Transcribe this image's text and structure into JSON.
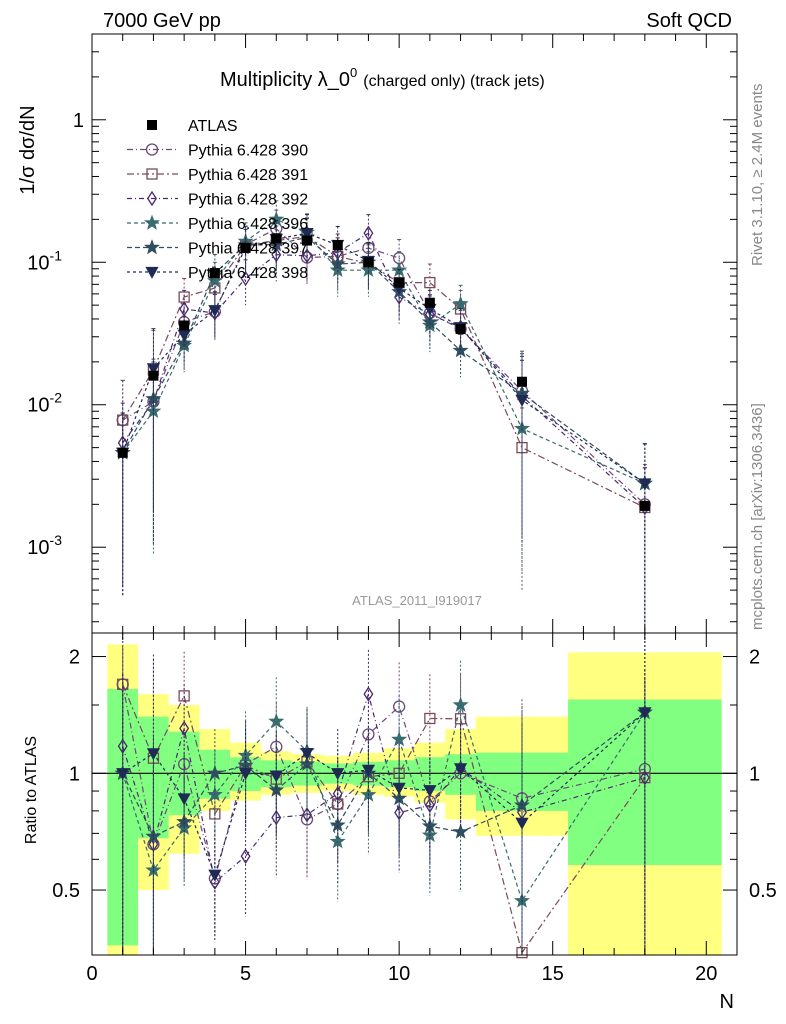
{
  "header": {
    "energy_label": "7000 GeV pp",
    "category_label": "Soft QCD"
  },
  "side_labels": {
    "rivet": "Rivet 3.1.10, ≥ 2.4M events",
    "mcplots": "mcplots.cern.ch [arXiv:1306.3436]"
  },
  "chart_data": [
    {
      "type": "scatter",
      "title": "Multiplicity λ_0",
      "title_superscript": "0",
      "title_suffix": "(charged only) (track jets)",
      "ylabel": "1/σ dσ/dN",
      "xlabel": "N",
      "analysis_tag": "ATLAS_2011_I919017",
      "yscale": "log",
      "ylim": [
        0.00025,
        4
      ],
      "xlim": [
        0,
        21
      ],
      "y_ticks": [
        {
          "value": 0.001,
          "label": "10",
          "exp": "-3"
        },
        {
          "value": 0.01,
          "label": "10",
          "exp": "-2"
        },
        {
          "value": 0.1,
          "label": "10",
          "exp": "-1"
        },
        {
          "value": 1,
          "label": "1",
          "exp": ""
        }
      ],
      "legend_position": "top-left",
      "x": [
        1,
        2,
        3,
        4,
        5,
        6,
        7,
        8,
        9,
        10,
        11,
        12,
        14,
        18
      ],
      "data": {
        "name": "ATLAS",
        "values": [
          0.0046,
          0.016,
          0.036,
          0.084,
          0.126,
          0.147,
          0.142,
          0.132,
          0.1,
          0.072,
          0.052,
          0.034,
          0.0145,
          0.00195
        ]
      },
      "series": [
        {
          "name": "Pythia 6.428 390",
          "color": "#6b4a78",
          "marker": "circle",
          "values": [
            0.0078,
            0.0105,
            0.038,
            0.045,
            0.133,
            0.172,
            0.108,
            0.11,
            0.126,
            0.107,
            0.044,
            0.034,
            0.0125,
            0.002
          ]
        },
        {
          "name": "Pythia 6.428 391",
          "color": "#7a4a5a",
          "marker": "square",
          "values": [
            0.0078,
            0.0175,
            0.057,
            0.066,
            0.132,
            0.142,
            0.152,
            0.11,
            0.098,
            0.072,
            0.072,
            0.047,
            0.005,
            0.0019
          ]
        },
        {
          "name": "Pythia 6.428 392",
          "color": "#4a2a6e",
          "marker": "diamond",
          "values": [
            0.0054,
            0.0105,
            0.047,
            0.044,
            0.077,
            0.113,
            0.111,
            0.117,
            0.16,
            0.057,
            0.043,
            0.035,
            0.0115,
            0.0019
          ]
        },
        {
          "name": "Pythia 6.428 396",
          "color": "#3a6b6e",
          "marker": "star",
          "values": [
            0.0046,
            0.009,
            0.026,
            0.074,
            0.14,
            0.2,
            0.162,
            0.088,
            0.088,
            0.088,
            0.036,
            0.051,
            0.0068,
            0.0028
          ]
        },
        {
          "name": "Pythia 6.428 397",
          "color": "#2f4f5f",
          "marker": "star",
          "values": [
            0.0046,
            0.011,
            0.027,
            0.084,
            0.132,
            0.133,
            0.15,
            0.097,
            0.1,
            0.062,
            0.038,
            0.024,
            0.012,
            0.0028
          ]
        },
        {
          "name": "Pythia 6.428 398",
          "color": "#1f2a55",
          "marker": "triangle-down",
          "values": [
            0.0046,
            0.018,
            0.031,
            0.046,
            0.126,
            0.145,
            0.16,
            0.132,
            0.102,
            0.066,
            0.047,
            0.035,
            0.0108,
            0.0028
          ]
        }
      ]
    },
    {
      "type": "scatter",
      "ylabel": "Ratio to ATLAS",
      "xlabel": "N",
      "ylim": [
        0.34,
        2.3
      ],
      "xlim": [
        0,
        21
      ],
      "y_ticks": [
        0.5,
        1,
        2
      ],
      "x_ticks": [
        0,
        5,
        10,
        15,
        20
      ],
      "reference_line": 1,
      "uncertainty_bands": [
        {
          "x_from": 0.5,
          "x_to": 1.5,
          "green": [
            0.36,
            1.65
          ],
          "yellow": [
            0.0,
            2.15
          ]
        },
        {
          "x_from": 1.5,
          "x_to": 2.5,
          "green": [
            0.68,
            1.4
          ],
          "yellow": [
            0.5,
            1.6
          ]
        },
        {
          "x_from": 2.5,
          "x_to": 3.5,
          "green": [
            0.78,
            1.28
          ],
          "yellow": [
            0.62,
            1.5
          ]
        },
        {
          "x_from": 3.5,
          "x_to": 4.5,
          "green": [
            0.86,
            1.15
          ],
          "yellow": [
            0.8,
            1.3
          ]
        },
        {
          "x_from": 4.5,
          "x_to": 5.5,
          "green": [
            0.9,
            1.1
          ],
          "yellow": [
            0.85,
            1.2
          ]
        },
        {
          "x_from": 5.5,
          "x_to": 6.5,
          "green": [
            0.92,
            1.08
          ],
          "yellow": [
            0.88,
            1.14
          ]
        },
        {
          "x_from": 6.5,
          "x_to": 7.5,
          "green": [
            0.93,
            1.07
          ],
          "yellow": [
            0.89,
            1.12
          ]
        },
        {
          "x_from": 7.5,
          "x_to": 8.5,
          "green": [
            0.94,
            1.06
          ],
          "yellow": [
            0.9,
            1.11
          ]
        },
        {
          "x_from": 8.5,
          "x_to": 9.5,
          "green": [
            0.93,
            1.07
          ],
          "yellow": [
            0.88,
            1.13
          ]
        },
        {
          "x_from": 9.5,
          "x_to": 10.5,
          "green": [
            0.92,
            1.08
          ],
          "yellow": [
            0.87,
            1.16
          ]
        },
        {
          "x_from": 10.5,
          "x_to": 11.5,
          "green": [
            0.9,
            1.1
          ],
          "yellow": [
            0.84,
            1.2
          ]
        },
        {
          "x_from": 11.5,
          "x_to": 12.5,
          "green": [
            0.88,
            1.12
          ],
          "yellow": [
            0.76,
            1.3
          ]
        },
        {
          "x_from": 12.5,
          "x_to": 15.5,
          "green": [
            0.8,
            1.13
          ],
          "yellow": [
            0.69,
            1.4
          ]
        },
        {
          "x_from": 15.5,
          "x_to": 20.5,
          "green": [
            0.58,
            1.55
          ],
          "yellow": [
            0.0,
            2.05
          ]
        }
      ]
    }
  ]
}
